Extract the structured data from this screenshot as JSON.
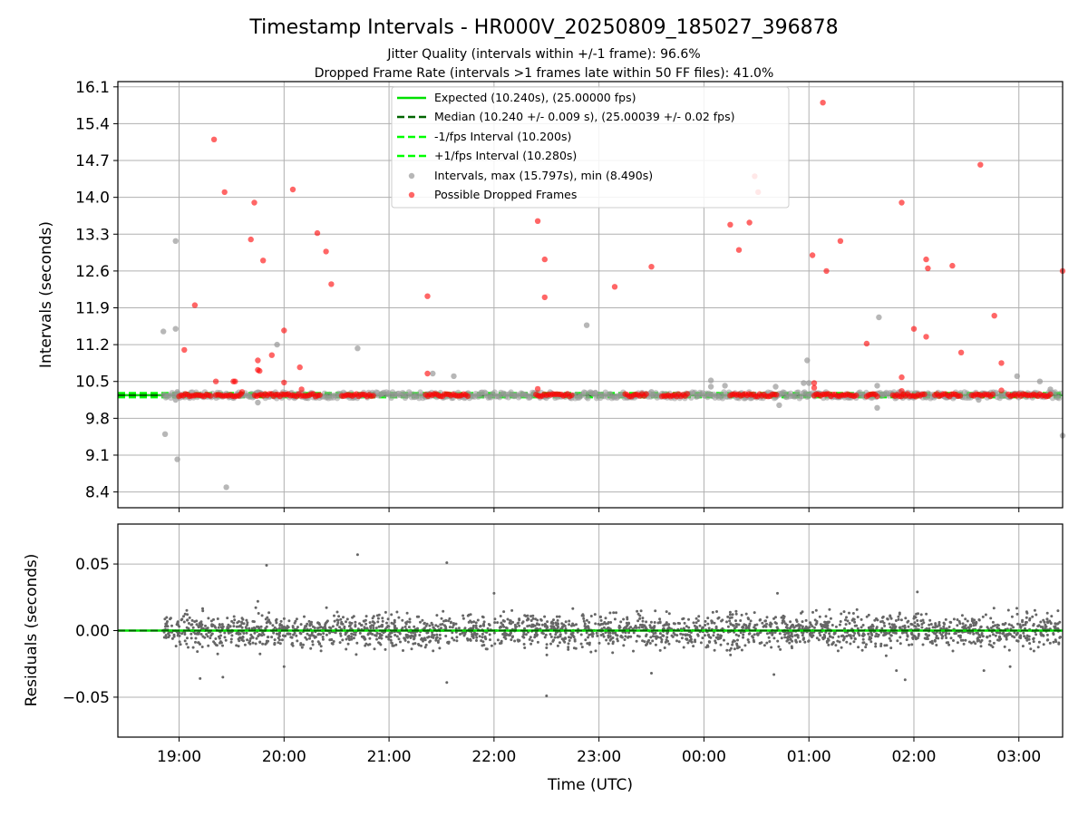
{
  "title": "Timestamp Intervals - HR000V_20250809_185027_396878",
  "subtitle_line1": "Jitter Quality (intervals within +/-1 frame): 96.6%",
  "subtitle_line2": "Dropped Frame Rate (intervals >1 frames late within 50 FF files): 41.0%",
  "colors": {
    "expected": "#00e000",
    "median": "#006400",
    "band": "#00ff00",
    "intervals": "#999999",
    "dropped": "#ff0000",
    "residuals": "#666666",
    "grid": "#b0b0b0"
  },
  "chart_data": [
    {
      "type": "scatter",
      "ylabel": "Intervals (seconds)",
      "ylim": [
        8.1,
        16.2
      ],
      "y_ticks": [
        "8.4",
        "9.1",
        "9.8",
        "10.5",
        "11.2",
        "11.9",
        "12.6",
        "13.3",
        "14.0",
        "14.7",
        "15.4",
        "16.1"
      ],
      "grid": true,
      "legend_position": "top-center",
      "legend": [
        "Expected (10.240s), (25.00000 fps)",
        "Median (10.240 +/- 0.009 s), (25.00039 +/- 0.02 fps)",
        "-1/fps Interval (10.200s)",
        "+1/fps Interval (10.280s)",
        "Intervals, max (15.797s), min (8.490s)",
        "Possible Dropped Frames"
      ],
      "reference_lines": {
        "expected": 10.24,
        "median": 10.24,
        "lower": 10.2,
        "upper": 10.28
      },
      "x_range_hours": [
        "18:25",
        "03:25"
      ],
      "series": [
        {
          "name": "Intervals, max (15.797s), min (8.490s)",
          "points": [
            [
              "18:51",
              11.45
            ],
            [
              "18:52",
              9.5
            ],
            [
              "18:58",
              13.17
            ],
            [
              "18:58",
              11.5
            ],
            [
              "18:59",
              10.3
            ],
            [
              "18:59",
              9.02
            ],
            [
              "18:58",
              10.15
            ],
            [
              "19:27",
              8.49
            ],
            [
              "19:45",
              10.1
            ],
            [
              "19:56",
              11.2
            ],
            [
              "20:42",
              11.13
            ],
            [
              "20:45",
              10.25
            ],
            [
              "21:25",
              10.65
            ],
            [
              "21:37",
              10.6
            ],
            [
              "22:53",
              11.57
            ],
            [
              "22:58",
              10.28
            ],
            [
              "23:30",
              10.3
            ],
            [
              "00:04",
              10.52
            ],
            [
              "00:04",
              10.4
            ],
            [
              "00:12",
              10.42
            ],
            [
              "00:41",
              10.4
            ],
            [
              "00:43",
              10.05
            ],
            [
              "00:57",
              10.47
            ],
            [
              "00:59",
              10.9
            ],
            [
              "01:00",
              10.47
            ],
            [
              "01:39",
              10.42
            ],
            [
              "01:39",
              10.0
            ],
            [
              "01:40",
              11.72
            ],
            [
              "02:37",
              10.15
            ],
            [
              "02:59",
              10.6
            ],
            [
              "03:12",
              10.5
            ],
            [
              "03:18",
              10.35
            ],
            [
              "03:25",
              9.47
            ],
            [
              "00:26",
              10.22
            ],
            [
              "01:50",
              10.25
            ]
          ]
        },
        {
          "name": "Possible Dropped Frames",
          "points": [
            [
              "19:03",
              11.1
            ],
            [
              "19:09",
              11.95
            ],
            [
              "19:20",
              15.1
            ],
            [
              "19:21",
              10.5
            ],
            [
              "19:26",
              14.1
            ],
            [
              "19:31",
              10.5
            ],
            [
              "19:32",
              10.5
            ],
            [
              "19:36",
              10.3
            ],
            [
              "19:41",
              13.2
            ],
            [
              "19:43",
              13.9
            ],
            [
              "19:45",
              10.9
            ],
            [
              "19:45",
              10.72
            ],
            [
              "19:46",
              10.7
            ],
            [
              "19:48",
              12.8
            ],
            [
              "19:53",
              11.0
            ],
            [
              "20:00",
              11.47
            ],
            [
              "20:00",
              10.48
            ],
            [
              "20:05",
              14.15
            ],
            [
              "20:09",
              10.77
            ],
            [
              "20:10",
              10.35
            ],
            [
              "20:19",
              13.32
            ],
            [
              "20:24",
              12.97
            ],
            [
              "20:27",
              12.35
            ],
            [
              "21:22",
              12.12
            ],
            [
              "21:22",
              10.65
            ],
            [
              "22:25",
              13.55
            ],
            [
              "22:25",
              10.36
            ],
            [
              "22:29",
              12.82
            ],
            [
              "22:29",
              12.1
            ],
            [
              "23:09",
              12.3
            ],
            [
              "23:30",
              12.68
            ],
            [
              "00:15",
              13.48
            ],
            [
              "00:20",
              13.0
            ],
            [
              "00:26",
              13.52
            ],
            [
              "00:29",
              14.4
            ],
            [
              "00:31",
              14.1
            ],
            [
              "01:02",
              12.9
            ],
            [
              "01:03",
              10.47
            ],
            [
              "01:03",
              10.38
            ],
            [
              "01:08",
              15.8
            ],
            [
              "01:10",
              12.6
            ],
            [
              "01:18",
              13.17
            ],
            [
              "01:33",
              11.22
            ],
            [
              "01:53",
              13.9
            ],
            [
              "01:53",
              10.58
            ],
            [
              "01:53",
              10.32
            ],
            [
              "02:00",
              11.5
            ],
            [
              "02:07",
              12.82
            ],
            [
              "02:07",
              11.35
            ],
            [
              "02:08",
              12.65
            ],
            [
              "02:22",
              12.7
            ],
            [
              "02:27",
              11.05
            ],
            [
              "02:38",
              14.62
            ],
            [
              "02:46",
              11.75
            ],
            [
              "02:50",
              10.85
            ],
            [
              "02:50",
              10.33
            ],
            [
              "03:25",
              12.6
            ]
          ]
        }
      ]
    },
    {
      "type": "scatter",
      "xlabel": "Time (UTC)",
      "ylabel": "Residuals (seconds)",
      "ylim": [
        -0.08,
        0.08
      ],
      "y_ticks": [
        "−0.05",
        "0.00",
        "0.05"
      ],
      "x_ticks": [
        "19:00",
        "20:00",
        "21:00",
        "22:00",
        "23:00",
        "00:00",
        "01:00",
        "02:00",
        "03:00"
      ],
      "x_range_hours": [
        "18:25",
        "03:25"
      ],
      "grid": true,
      "reference_lines": {
        "median_residual": 0.0
      },
      "series": [
        {
          "name": "Residuals",
          "points": [
            [
              "19:50",
              0.049
            ],
            [
              "20:42",
              0.057
            ],
            [
              "21:33",
              0.051
            ],
            [
              "21:33",
              -0.039
            ],
            [
              "22:30",
              -0.049
            ],
            [
              "19:12",
              -0.036
            ],
            [
              "19:25",
              -0.035
            ],
            [
              "20:00",
              -0.027
            ],
            [
              "23:30",
              -0.032
            ],
            [
              "00:40",
              -0.033
            ],
            [
              "01:55",
              -0.037
            ],
            [
              "02:40",
              -0.03
            ],
            [
              "02:55",
              -0.027
            ],
            [
              "01:50",
              -0.03
            ],
            [
              "19:45",
              0.022
            ],
            [
              "22:00",
              0.028
            ],
            [
              "00:42",
              0.028
            ],
            [
              "02:02",
              0.029
            ]
          ],
          "distribution": {
            "mean": 0.0,
            "std": 0.009,
            "count": 2300
          }
        }
      ]
    }
  ]
}
